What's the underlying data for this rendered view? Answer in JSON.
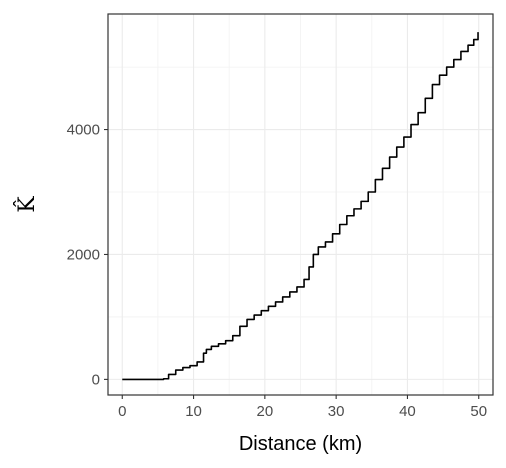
{
  "chart_data": {
    "type": "line",
    "title": "",
    "xlabel": "Distance (km)",
    "ylabel": "K̂",
    "xlim": [
      -2,
      52
    ],
    "ylim": [
      -250,
      5850
    ],
    "x_ticks": [
      0,
      10,
      20,
      30,
      40,
      50
    ],
    "x_tick_labels": [
      "0",
      "10",
      "20",
      "30",
      "40",
      "50"
    ],
    "y_ticks": [
      0,
      2000,
      4000
    ],
    "y_tick_labels": [
      "0",
      "2000",
      "4000"
    ],
    "grid": true,
    "line_color": "#000000",
    "series": [
      {
        "x": [
          0,
          1,
          2,
          3,
          4,
          5,
          5.8,
          6.5,
          7.5,
          8.5,
          9.5,
          10.5,
          11.4,
          11.8,
          12.5,
          13.5,
          14.5,
          15.5,
          16.5,
          17.5,
          18.5,
          19.5,
          20.5,
          21.5,
          22.5,
          23.5,
          24.5,
          25.5,
          26.2,
          26.8,
          27.5,
          28.5,
          29.5,
          30.5,
          31.5,
          32.5,
          33.5,
          34.5,
          35.5,
          36.5,
          37.5,
          38.5,
          39.5,
          40.5,
          41.5,
          42.5,
          43.5,
          44.5,
          45.5,
          46.5,
          47.5,
          48.5,
          49.3,
          49.9
        ],
        "y": [
          0,
          0,
          0,
          0,
          0,
          0,
          10,
          80,
          150,
          190,
          220,
          280,
          420,
          480,
          530,
          570,
          620,
          700,
          850,
          960,
          1030,
          1100,
          1170,
          1240,
          1320,
          1400,
          1480,
          1600,
          1800,
          2000,
          2120,
          2200,
          2330,
          2480,
          2620,
          2730,
          2850,
          3000,
          3200,
          3380,
          3560,
          3720,
          3880,
          4080,
          4270,
          4500,
          4720,
          4870,
          5000,
          5120,
          5250,
          5350,
          5440,
          5560
        ]
      }
    ]
  }
}
